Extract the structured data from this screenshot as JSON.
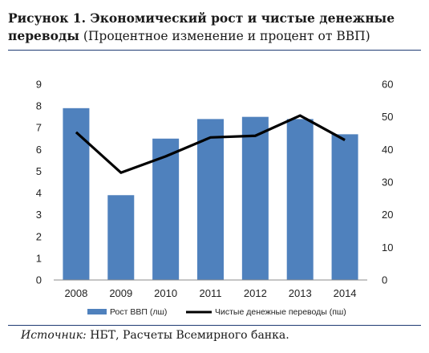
{
  "figure": {
    "title_bold": "Рисунок 1. Экономический рост и чистые денежные переводы",
    "title_normal": "(Процентное изменение и процент от ВВП)",
    "source_label": "Источник:",
    "source_text": "НБТ, Расчеты Всемирного банка."
  },
  "chart_data": {
    "type": "bar",
    "categories": [
      "2008",
      "2009",
      "2010",
      "2011",
      "2012",
      "2013",
      "2014"
    ],
    "series": [
      {
        "name": "Рост ВВП (лш)",
        "kind": "bar",
        "axis": "left",
        "color": "#4f81bd",
        "values": [
          7.9,
          3.9,
          6.5,
          7.4,
          7.5,
          7.4,
          6.7
        ]
      },
      {
        "name": "Чистые денежные переводы  (пш)",
        "kind": "line",
        "axis": "right",
        "color": "#000000",
        "values": [
          45.3,
          32.9,
          37.9,
          43.7,
          44.2,
          50.4,
          42.9
        ]
      }
    ],
    "left_axis": {
      "min": 0,
      "max": 9,
      "ticks": [
        "0",
        "1",
        "2",
        "3",
        "4",
        "5",
        "6",
        "7",
        "8",
        "9"
      ]
    },
    "right_axis": {
      "min": 0,
      "max": 60,
      "ticks": [
        "0",
        "10",
        "20",
        "30",
        "40",
        "50",
        "60"
      ]
    },
    "grid": false,
    "legend_position": "bottom"
  }
}
